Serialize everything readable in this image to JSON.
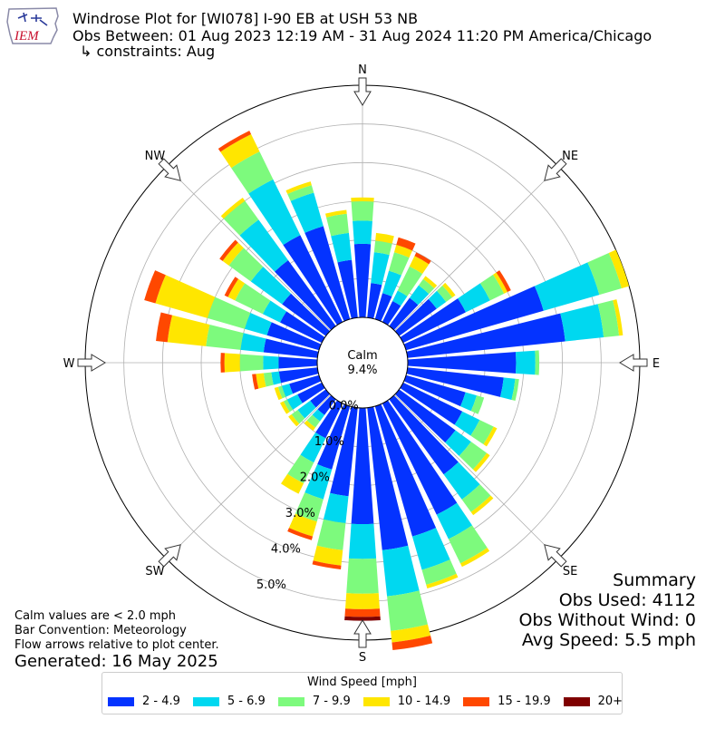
{
  "header": {
    "logo_text": "IEM",
    "title": "Windrose Plot for [WI078] I-90 EB at USH 53 NB",
    "subtitle": "Obs Between: 01 Aug 2023 12:19 AM - 31 Aug 2024 11:20 PM America/Chicago",
    "constraints": "↳ constraints: Aug"
  },
  "notes": {
    "calm": "Calm values are < 2.0 mph",
    "bar_convention": "Bar Convention: Meteorology",
    "flow": "Flow arrows relative to plot center.",
    "generated": "Generated: 16 May 2025"
  },
  "summary": {
    "title": "Summary",
    "obs_used": "Obs Used: 4112",
    "obs_without_wind": "Obs Without Wind: 0",
    "avg_speed": "Avg Speed: 5.5 mph"
  },
  "chart_data": {
    "type": "windrose",
    "calm_label": "Calm",
    "calm_value": "9.4%",
    "direction_labels": [
      "N",
      "NE",
      "E",
      "SE",
      "S",
      "SW",
      "W",
      "NW"
    ],
    "radial_tick_labels": [
      "0.0%",
      "1.0%",
      "2.0%",
      "3.0%",
      "4.0%",
      "5.0%"
    ],
    "radial_ticks": [
      0,
      1,
      2,
      3,
      4,
      5
    ],
    "rmax": 6.0,
    "legend_title": "Wind Speed [mph]",
    "bins": [
      {
        "label": "2 - 4.9",
        "color": "#0433ff"
      },
      {
        "label": "5 - 6.9",
        "color": "#00d8f0"
      },
      {
        "label": "7 - 9.9",
        "color": "#7dfa7d"
      },
      {
        "label": "10 - 14.9",
        "color": "#ffe600"
      },
      {
        "label": "15 - 19.9",
        "color": "#ff4800"
      },
      {
        "label": "20+",
        "color": "#7f0000"
      }
    ],
    "direction_degrees": [
      0,
      10,
      20,
      30,
      40,
      50,
      60,
      70,
      80,
      90,
      100,
      110,
      120,
      130,
      140,
      150,
      160,
      170,
      180,
      190,
      200,
      210,
      220,
      230,
      240,
      250,
      260,
      270,
      280,
      290,
      300,
      310,
      320,
      330,
      340,
      350
    ],
    "cumulative_percent": [
      [
        1.9,
        2.5,
        3.0,
        3.1,
        3.1,
        3.1
      ],
      [
        0.9,
        1.7,
        2.0,
        2.2,
        2.2,
        2.2
      ],
      [
        0.7,
        1.3,
        1.8,
        2.0,
        2.2,
        2.2
      ],
      [
        0.6,
        0.9,
        1.6,
        1.9,
        2.0,
        2.0
      ],
      [
        0.9,
        1.3,
        1.5,
        1.6,
        1.6,
        1.6
      ],
      [
        1.2,
        1.5,
        1.7,
        1.8,
        1.8,
        1.8
      ],
      [
        1.8,
        2.5,
        2.9,
        3.0,
        3.1,
        3.1
      ],
      [
        3.7,
        5.2,
        5.8,
        6.0,
        6.0,
        6.0
      ],
      [
        4.1,
        5.1,
        5.5,
        5.6,
        5.6,
        5.6
      ],
      [
        2.8,
        3.3,
        3.4,
        3.4,
        3.4,
        3.4
      ],
      [
        2.5,
        2.8,
        2.9,
        2.9,
        2.9,
        2.9
      ],
      [
        1.6,
        1.9,
        2.1,
        2.1,
        2.1,
        2.1
      ],
      [
        1.7,
        2.2,
        2.6,
        2.7,
        2.7,
        2.7
      ],
      [
        1.8,
        2.3,
        2.8,
        2.9,
        2.9,
        2.9
      ],
      [
        2.4,
        3.2,
        3.6,
        3.7,
        3.7,
        3.7
      ],
      [
        3.2,
        3.9,
        4.6,
        4.7,
        4.7,
        4.7
      ],
      [
        3.5,
        4.4,
        4.8,
        4.9,
        4.9,
        4.9
      ],
      [
        3.7,
        4.9,
        5.8,
        6.1,
        6.3,
        6.3
      ],
      [
        3.0,
        3.9,
        4.8,
        5.2,
        5.4,
        5.5
      ],
      [
        2.3,
        3.0,
        3.7,
        4.1,
        4.2,
        4.2
      ],
      [
        1.7,
        2.5,
        3.1,
        3.5,
        3.6,
        3.6
      ],
      [
        1.0,
        1.7,
        2.3,
        2.6,
        2.6,
        2.6
      ],
      [
        0.5,
        0.7,
        0.9,
        1.0,
        1.0,
        1.0
      ],
      [
        0.5,
        0.9,
        1.1,
        1.2,
        1.2,
        1.2
      ],
      [
        0.7,
        1.0,
        1.1,
        1.2,
        1.2,
        1.2
      ],
      [
        0.8,
        1.0,
        1.1,
        1.2,
        1.2,
        1.2
      ],
      [
        1.0,
        1.2,
        1.4,
        1.6,
        1.7,
        1.7
      ],
      [
        1.0,
        1.4,
        2.0,
        2.4,
        2.5,
        2.5
      ],
      [
        1.4,
        2.0,
        2.9,
        3.9,
        4.2,
        4.2
      ],
      [
        1.4,
        2.0,
        3.0,
        4.4,
        4.7,
        4.7
      ],
      [
        1.2,
        1.7,
        2.5,
        2.7,
        2.8,
        2.8
      ],
      [
        1.4,
        2.4,
        3.1,
        3.3,
        3.4,
        3.4
      ],
      [
        2.1,
        3.4,
        4.0,
        4.1,
        4.1,
        4.1
      ],
      [
        2.5,
        4.1,
        4.9,
        5.4,
        5.5,
        5.5
      ],
      [
        2.5,
        3.4,
        3.6,
        3.7,
        3.7,
        3.7
      ],
      [
        1.5,
        2.2,
        2.7,
        2.8,
        2.8,
        2.8
      ]
    ]
  }
}
